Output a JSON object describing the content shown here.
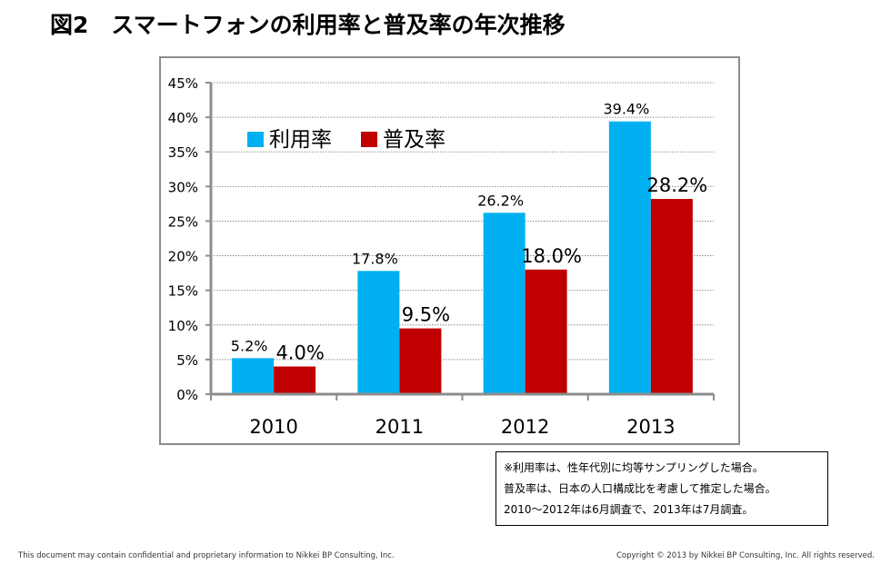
{
  "title": "図2　スマートフォンの利用率と普及率の年次推移",
  "chart_data": {
    "type": "bar",
    "title": "スマートフォンの利用率と普及率の年次推移",
    "categories": [
      "2010",
      "2011",
      "2012",
      "2013"
    ],
    "series": [
      {
        "name": "利用率",
        "color": "#00b0f0",
        "values": [
          5.2,
          17.8,
          26.2,
          39.4
        ],
        "labels": [
          "5.2%",
          "17.8%",
          "26.2%",
          "39.4%"
        ]
      },
      {
        "name": "普及率",
        "color": "#c00000",
        "values": [
          4.0,
          9.5,
          18.0,
          28.2
        ],
        "labels": [
          "4.0%",
          "9.5%",
          "18.0%",
          "28.2%"
        ]
      }
    ],
    "xlabel": "",
    "ylabel": "",
    "ylim": [
      0,
      45
    ],
    "yticks": [
      0,
      5,
      10,
      15,
      20,
      25,
      30,
      35,
      40,
      45
    ],
    "ytick_labels": [
      "0%",
      "5%",
      "10%",
      "15%",
      "20%",
      "25%",
      "30%",
      "35%",
      "40%",
      "45%"
    ],
    "grid": true,
    "legend_position": "top-left"
  },
  "notes": [
    "※利用率は、性年代別に均等サンプリングした場合。",
    "普及率は、日本の人口構成比を考慮して推定した場合。",
    "2010～2012年は6月調査で、2013年は7月調査。"
  ],
  "footer": {
    "left": "This document may contain confidential and proprietary information to Nikkei BP Consulting, Inc.",
    "right": "Copyright © 2013 by Nikkei BP Consulting, Inc. All rights reserved."
  }
}
